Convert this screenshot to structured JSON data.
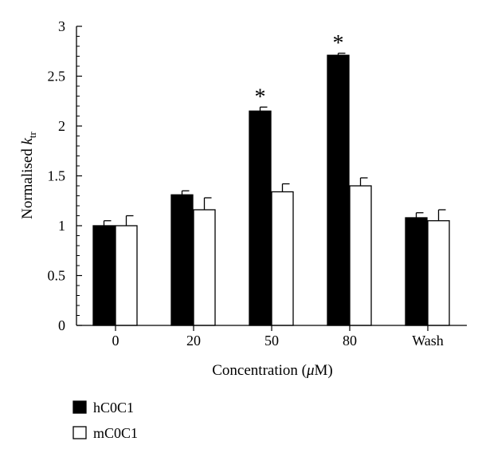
{
  "chart_data": {
    "type": "bar",
    "categories": [
      "0",
      "20",
      "50",
      "80",
      "Wash"
    ],
    "series": [
      {
        "name": "hC0C1",
        "color": "#000000",
        "values": [
          1.0,
          1.31,
          2.15,
          2.71,
          1.08
        ],
        "errors": [
          0.05,
          0.04,
          0.04,
          0.02,
          0.05
        ]
      },
      {
        "name": "mC0C1",
        "color": "#ffffff",
        "values": [
          1.0,
          1.16,
          1.34,
          1.4,
          1.05
        ],
        "errors": [
          0.1,
          0.12,
          0.08,
          0.08,
          0.11
        ]
      }
    ],
    "significance": [
      "",
      "",
      "*",
      "*",
      ""
    ],
    "xlabel_prefix": "Concentration (",
    "xlabel_unit": "μ",
    "xlabel_suffix": "M)",
    "ylabel_main": "Normalised ",
    "ylabel_var": "k",
    "ylabel_sub": "tr",
    "ylim": [
      0,
      3
    ],
    "yticks": [
      0,
      0.5,
      1,
      1.5,
      2,
      2.5,
      3
    ],
    "ytick_labels": [
      "0",
      "0.5",
      "1",
      "1.5",
      "2",
      "2.5",
      "3"
    ],
    "grid": false,
    "legend_position": "bottom-left"
  }
}
